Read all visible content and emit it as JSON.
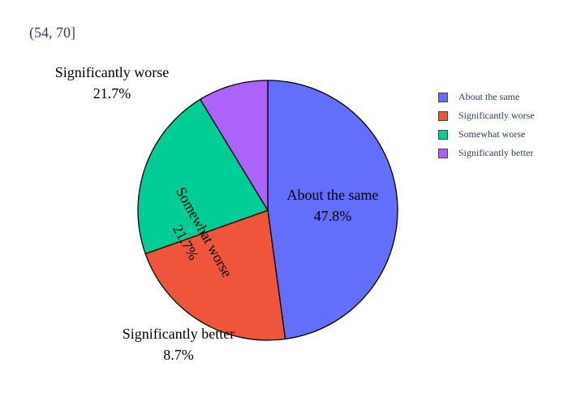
{
  "chart_data": {
    "type": "pie",
    "title": "(54, 70]",
    "legend_position": "right",
    "slices": [
      {
        "label": "About the same",
        "value": 47.8,
        "pct_text": "47.8%",
        "color": "#636efa"
      },
      {
        "label": "Significantly worse",
        "value": 21.7,
        "pct_text": "21.7%",
        "color": "#ef553b"
      },
      {
        "label": "Somewhat worse",
        "value": 21.7,
        "pct_text": "21.7%",
        "color": "#00cc96"
      },
      {
        "label": "Significantly better",
        "value": 8.7,
        "pct_text": "8.7%",
        "color": "#ab63fa"
      }
    ],
    "legend_order": [
      "About the same",
      "Significantly worse",
      "Somewhat worse",
      "Significantly better"
    ]
  }
}
